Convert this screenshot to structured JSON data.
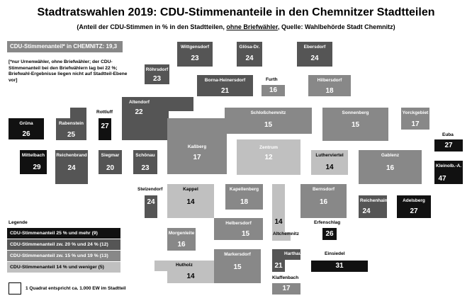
{
  "title": "Stadtratswahlen 2019: CDU-Stimmenanteile in den Chemnitzer Stadtteilen",
  "subtitle": {
    "part1": "(Anteil der CDU-Stimmen in % in den Stadtteilen, ",
    "underlined": "ohne Briefwähler",
    "part2": ", Quelle: Wahlbehörde Stadt Chemnitz)"
  },
  "city_share": "CDU-Stimmenanteil* in CHEMNITZ: 19,3 %",
  "note": "[*nur Urnenwähler, ohne Briefwähler; der CDU-Stimmenanteil bei den Briefwählern lag bei 22 %; Briefwahl-Ergebnisse liegen nicht auf Stadtteil-Ebene vor]",
  "colors": {
    "c1": "#111111",
    "c2": "#555555",
    "c3": "#888888",
    "c4": "#c0c0c0"
  },
  "districts": [
    {
      "name": "Wittgensdorf",
      "value": "23"
    },
    {
      "name": "Glösa-Dr.",
      "value": "24"
    },
    {
      "name": "Ebersdorf",
      "value": "24"
    },
    {
      "name": "Röhrsdorf",
      "value": "23"
    },
    {
      "name": "Borna-Heinersdorf",
      "value": "21"
    },
    {
      "name": "Furth",
      "value": "16"
    },
    {
      "name": "Hilbersdorf",
      "value": "18"
    },
    {
      "name": "Altendorf",
      "value": "22"
    },
    {
      "name": "Rottluff",
      "value": "27"
    },
    {
      "name": "Grüna",
      "value": "26"
    },
    {
      "name": "Rabenstein",
      "value": "25"
    },
    {
      "name": "Schloßchemnitz",
      "value": "15"
    },
    {
      "name": "Sonnenberg",
      "value": "15"
    },
    {
      "name": "Yorckgebiet",
      "value": "17"
    },
    {
      "name": "Euba",
      "value": "27"
    },
    {
      "name": "Kaßberg",
      "value": "17"
    },
    {
      "name": "Zentrum",
      "value": "12"
    },
    {
      "name": "Lutherviertel",
      "value": "14"
    },
    {
      "name": "Gablenz",
      "value": "16"
    },
    {
      "name": "Mittelbach",
      "value": "29"
    },
    {
      "name": "Reichenbrand",
      "value": "24"
    },
    {
      "name": "Siegmar",
      "value": "20"
    },
    {
      "name": "Schönau",
      "value": "23"
    },
    {
      "name": "Kleinolb.-A.",
      "value": "47"
    },
    {
      "name": "Stelzendorf",
      "value": "24"
    },
    {
      "name": "Kappel",
      "value": "14"
    },
    {
      "name": "Kapellenberg",
      "value": "18"
    },
    {
      "name": "Bernsdorf",
      "value": "16"
    },
    {
      "name": "Reichenhain",
      "value": "24"
    },
    {
      "name": "Adelsberg",
      "value": "27"
    },
    {
      "name": "Helbersdorf",
      "value": "15"
    },
    {
      "name": "Altchemnitz",
      "value": "14"
    },
    {
      "name": "Erfenschlag",
      "value": "26"
    },
    {
      "name": "Morgenleite",
      "value": "16"
    },
    {
      "name": "Markersdorf",
      "value": "15"
    },
    {
      "name": "Harthau",
      "value": "21"
    },
    {
      "name": "Einsiedel",
      "value": "31"
    },
    {
      "name": "Hutholz",
      "value": "14"
    },
    {
      "name": "Klaffenbach",
      "value": "17"
    }
  ],
  "legend": {
    "title": "Legende",
    "items": [
      {
        "label": "CDU-Stimmenanteil 25 % und mehr  (9)"
      },
      {
        "label": "CDU-Stimmenanteil zw. 20 % und 24 % (12)"
      },
      {
        "label": "CDU-Stimmenanteil zw. 15 % und 19 % (13)"
      },
      {
        "label": "CDU-Stimmenanteil 14 % und weniger (5)"
      }
    ],
    "scale_note": "1 Quadrat entspricht ca. 1.000 EW im Stadtteil"
  }
}
